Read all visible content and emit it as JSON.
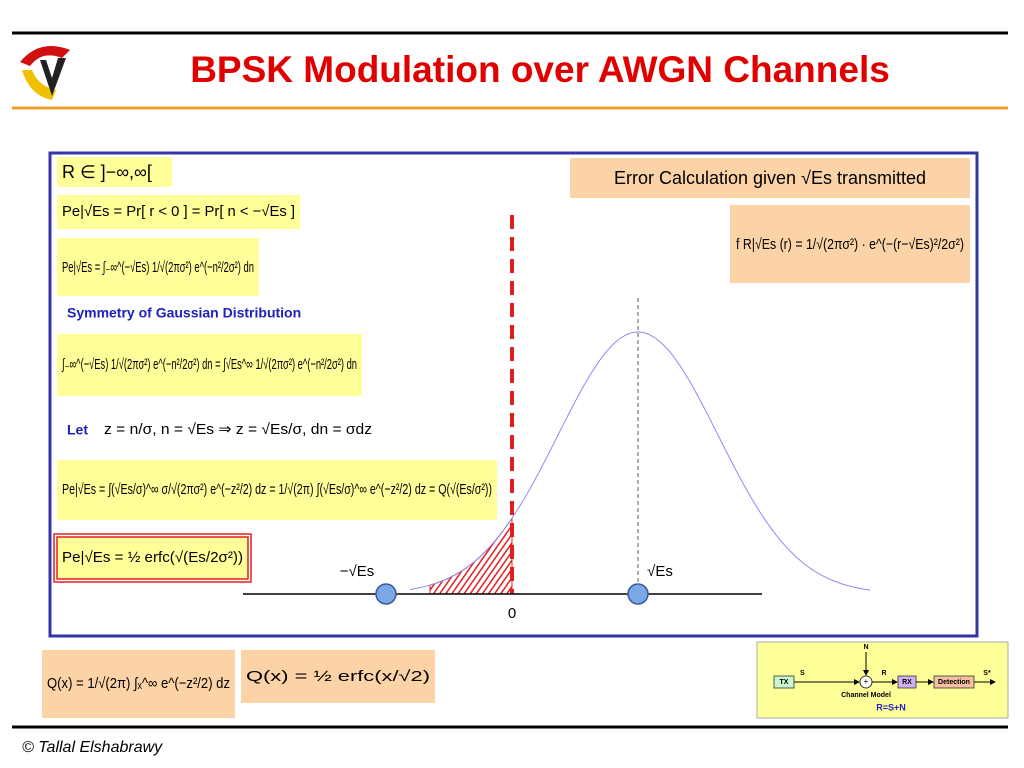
{
  "header": {
    "title": "BPSK Modulation over AWGN Channels"
  },
  "panel": {
    "domain": "R ∈ ]−∞,∞[",
    "error_heading": "Error Calculation given √Es transmitted",
    "pdf": "f R|√Es (r) = 1/√(2πσ²) · e^(−(r−√Es)²/2σ²)",
    "formulas": [
      "Pe|√Es = Pr[ r < 0 ] = Pr[ n < −√Es ]",
      "Pe|√Es = ∫₋∞^(−√Es) 1/√(2πσ²) e^(−n²/2σ²) dn",
      "∫₋∞^(−√Es) 1/√(2πσ²) e^(−n²/2σ²) dn = ∫√Es^∞ 1/√(2πσ²) e^(−n²/2σ²) dn",
      "Pe|√Es = ∫(√Es/σ)^∞ σ/√(2πσ²) e^(−z²/2) dz = 1/√(2π) ∫(√Es/σ)^∞ e^(−z²/2) dz = Q(√(Es/σ²))",
      "Pe|√Es = ½ erfc(√(Es/2σ²))"
    ],
    "symmetry_heading": "Symmetry of Gaussian Distribution",
    "let_label": "Let",
    "let_formula": "z = n/σ, n = √Es ⇒ z = √Es/σ, dn = σdz",
    "plot": {
      "neg_label": "−√Es",
      "pos_label": "√Es",
      "origin_label": "0"
    }
  },
  "bottom": {
    "q_function": "Q(x) = 1/√(2π) ∫ₓ^∞ e^(−z²/2) dz",
    "q_erfc": "Q(x) = ½ erfc(x/√2)",
    "diagram": {
      "tx": "TX",
      "s": "S",
      "n": "N",
      "sum": "+",
      "r": "R",
      "rx": "RX",
      "detection": "Detection",
      "s_star": "S*",
      "channel": "Channel Model",
      "equation": "R=S+N"
    }
  },
  "footer": {
    "copyright": "© Tallal Elshabrawy"
  }
}
